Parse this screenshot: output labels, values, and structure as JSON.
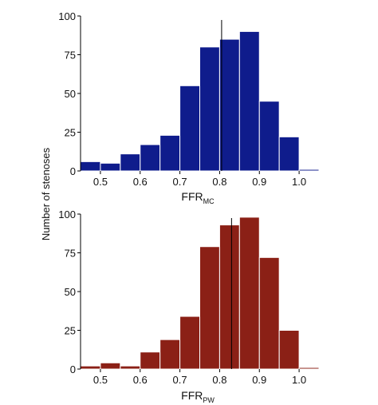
{
  "shared_ylabel": "Number of stenoses",
  "chart_data": [
    {
      "type": "bar",
      "variant": "histogram",
      "xlabel_main": "FFR",
      "xlabel_sub": "MC",
      "ylabel": "Number of stenoses",
      "bar_color": "#0f1c8c",
      "bin_width": 0.05,
      "bins_start": [
        0.45,
        0.5,
        0.55,
        0.6,
        0.65,
        0.7,
        0.75,
        0.8,
        0.85,
        0.9,
        0.95,
        1.0
      ],
      "values": [
        6,
        5,
        11,
        17,
        23,
        55,
        80,
        85,
        90,
        45,
        22,
        1
      ],
      "reference_line_x": 0.805,
      "xlim": [
        0.45,
        1.05
      ],
      "ylim": [
        0,
        100
      ],
      "xticks": [
        "0.5",
        "0.6",
        "0.7",
        "0.8",
        "0.9",
        "1.0"
      ],
      "yticks": [
        "0",
        "25",
        "50",
        "75",
        "100"
      ]
    },
    {
      "type": "bar",
      "variant": "histogram",
      "xlabel_main": "FFR",
      "xlabel_sub": "PW",
      "ylabel": "Number of stenoses",
      "bar_color": "#8b2016",
      "bin_width": 0.05,
      "bins_start": [
        0.45,
        0.5,
        0.55,
        0.6,
        0.65,
        0.7,
        0.75,
        0.8,
        0.85,
        0.9,
        0.95,
        1.0
      ],
      "values": [
        2,
        4,
        2,
        11,
        19,
        34,
        79,
        93,
        98,
        72,
        25,
        1
      ],
      "reference_line_x": 0.83,
      "xlim": [
        0.45,
        1.05
      ],
      "ylim": [
        0,
        100
      ],
      "xticks": [
        "0.5",
        "0.6",
        "0.7",
        "0.8",
        "0.9",
        "1.0"
      ],
      "yticks": [
        "0",
        "25",
        "50",
        "75",
        "100"
      ]
    }
  ]
}
